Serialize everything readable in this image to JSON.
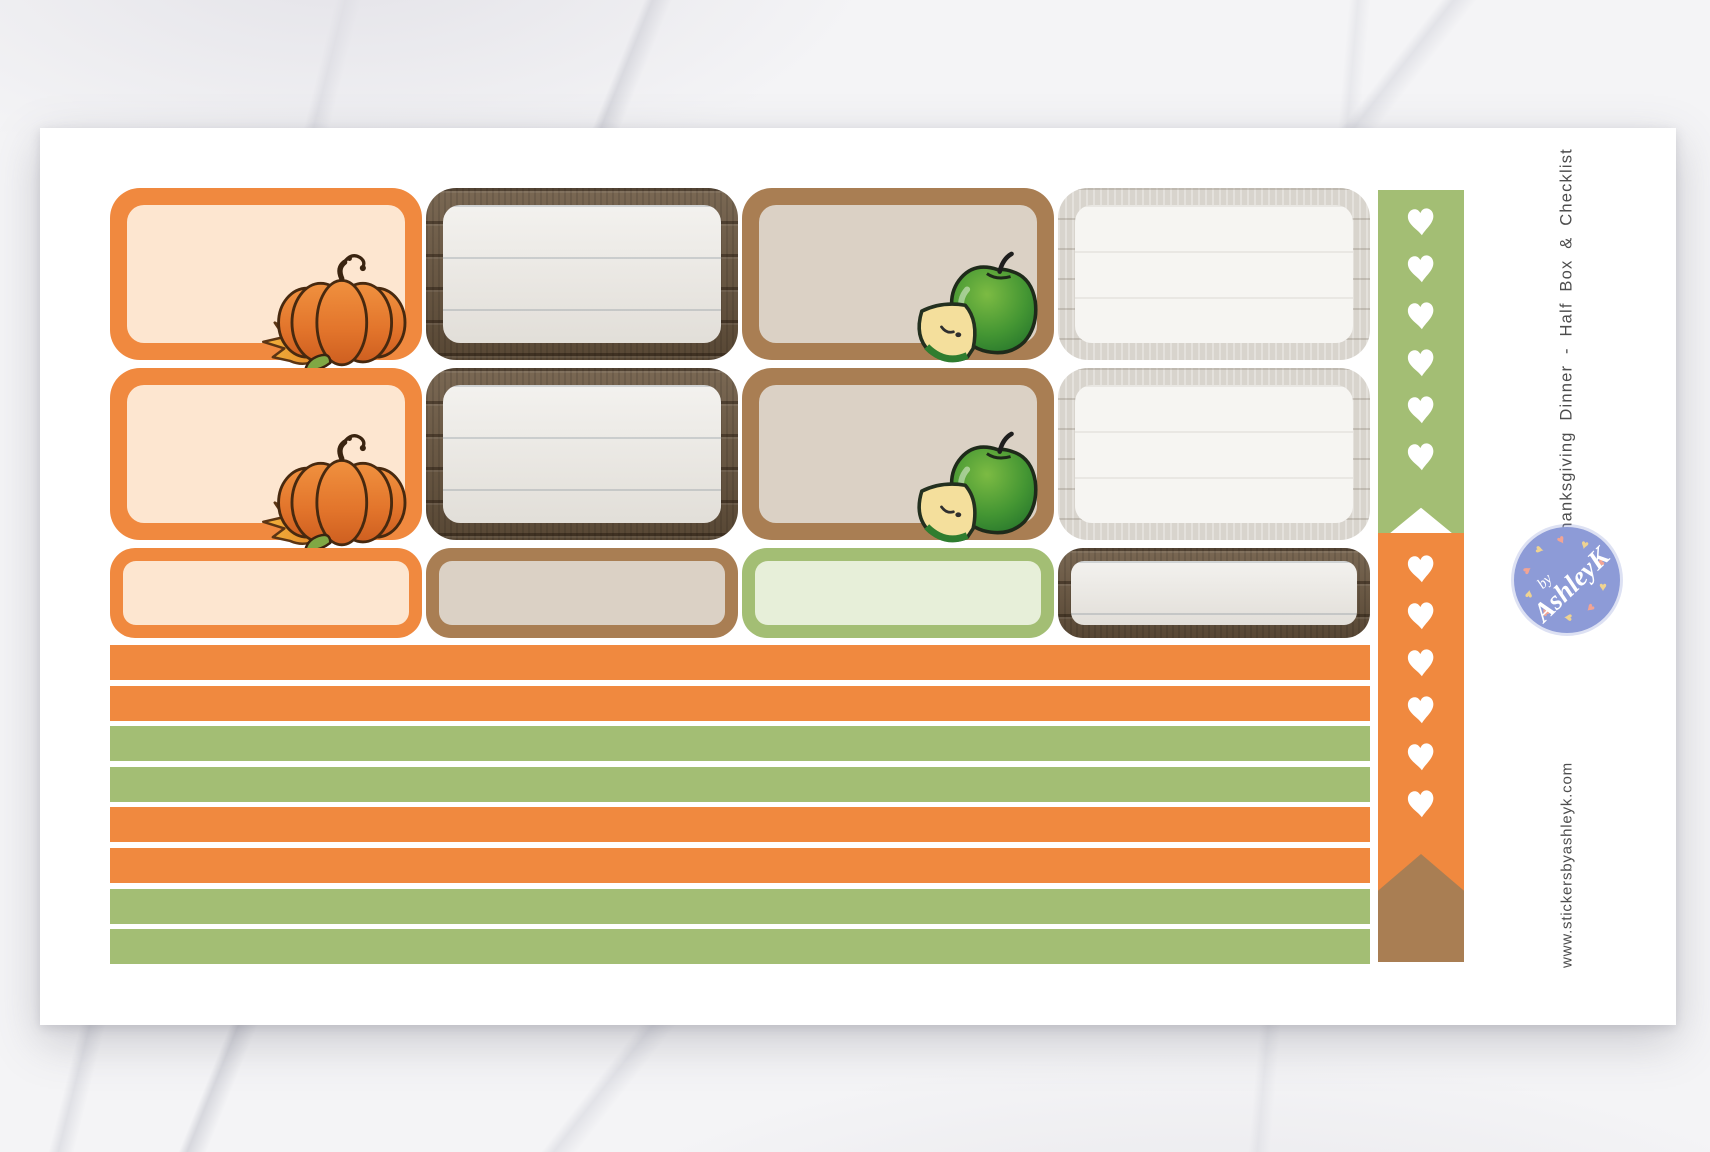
{
  "sheet": {
    "side_title": "Thanksgiving Dinner - Half Box & Checklist",
    "website": "www.stickersbyashleyk.com",
    "logo": {
      "line1": "by",
      "line2": "AshleyK"
    }
  },
  "colors": {
    "orange": "#F0893F",
    "orange_fill": "#FDE6D0",
    "green": "#A3BE74",
    "green_fill": "#E7EFD9",
    "brown": "#A97E53",
    "brown_fill": "#DBD1C5",
    "dark_wood": "#6B5740",
    "white_wood": "#D8D4CD",
    "logo_blue": "#8D9BD7",
    "text_gray": "#4D4D4D",
    "heart_white": "#FFFFFF",
    "logo_heart_yellow": "#EFD391",
    "logo_heart_coral": "#F2A494"
  },
  "half_boxes": {
    "rows": [
      [
        "orange-pumpkin",
        "dark-wood",
        "brown-apple",
        "white-wood"
      ],
      [
        "orange-pumpkin",
        "dark-wood",
        "brown-apple",
        "white-wood"
      ]
    ],
    "quarter_row": [
      "orange",
      "brown",
      "green",
      "dark-wood"
    ]
  },
  "strips": [
    "orange",
    "orange",
    "green",
    "green",
    "orange",
    "orange",
    "green",
    "green"
  ],
  "checklists": [
    {
      "color": "green",
      "hearts": 6,
      "end": "notch"
    },
    {
      "color": "orange",
      "hearts": 6,
      "end": "notch"
    },
    {
      "color": "brown",
      "hearts": 0,
      "end": "pentagon"
    }
  ],
  "decorations": [
    "pumpkin-icon",
    "apple-icon"
  ]
}
